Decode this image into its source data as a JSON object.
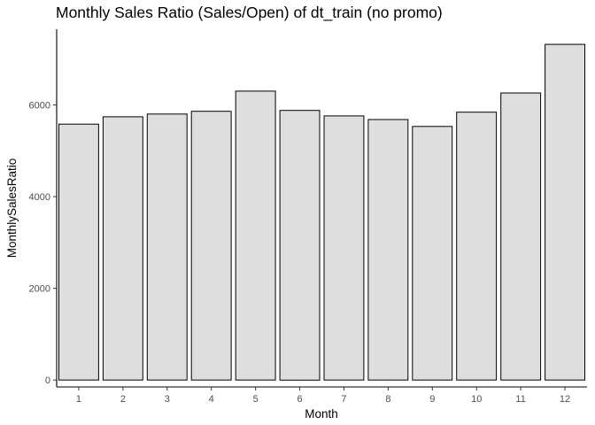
{
  "chart_data": {
    "type": "bar",
    "title": "Monthly Sales Ratio (Sales/Open) of dt_train (no promo)",
    "xlabel": "Month",
    "ylabel": "MonthlySalesRatio",
    "categories": [
      "1",
      "2",
      "3",
      "4",
      "5",
      "6",
      "7",
      "8",
      "9",
      "10",
      "11",
      "12"
    ],
    "values": [
      5580,
      5740,
      5800,
      5860,
      6300,
      5880,
      5760,
      5680,
      5530,
      5840,
      6260,
      7320
    ],
    "ylim": [
      -150,
      7650
    ],
    "yticks": [
      0,
      2000,
      4000,
      6000
    ],
    "ytick_labels": [
      "0",
      "2000",
      "4000",
      "6000"
    ],
    "bar_fill": "#dedede",
    "bar_stroke": "#000000",
    "grid": false,
    "legend": "none"
  }
}
